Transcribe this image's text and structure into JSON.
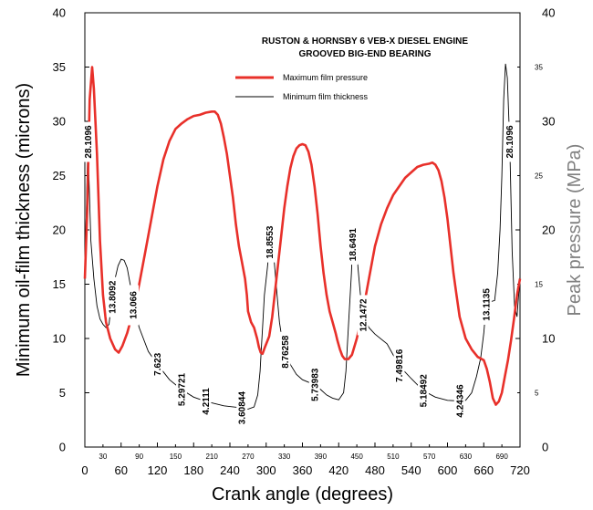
{
  "chart_data": {
    "type": "line",
    "title_line1": "RUSTON & HORNSBY 6 VEB-X DIESEL ENGINE",
    "title_line2": "GROOVED BIG-END BEARING",
    "xlabel": "Crank  angle  (degrees)",
    "ylabel_left": "Minimum oil-film thickness  (microns)",
    "ylabel_right": "Peak  pressure  (MPa)",
    "xlim": [
      0,
      720
    ],
    "ylim_left": [
      0,
      40
    ],
    "ylim_right": [
      0,
      40
    ],
    "x_major_ticks": [
      "0",
      "60",
      "120",
      "180",
      "240",
      "300",
      "360",
      "420",
      "480",
      "540",
      "600",
      "660",
      "720"
    ],
    "x_minor_ticks": [
      "30",
      "90",
      "150",
      "210",
      "270",
      "330",
      "390",
      "450",
      "510",
      "570",
      "630",
      "690"
    ],
    "y_left_ticks": [
      "0",
      "5",
      "10",
      "15",
      "20",
      "25",
      "30",
      "35",
      "40"
    ],
    "y_right_major_ticks": [
      "0",
      "10",
      "20",
      "30",
      "40"
    ],
    "y_right_minor_ticks": [
      "5",
      "15",
      "25",
      "35"
    ],
    "legend": {
      "position": "top-right",
      "entries": [
        "Maximum film pressure",
        "Minimum film thickness"
      ]
    },
    "series": [
      {
        "name": "Maximum film pressure",
        "axis": "right",
        "color": "#e8302a",
        "points": [
          [
            0,
            15.5
          ],
          [
            4,
            22
          ],
          [
            8,
            32
          ],
          [
            12,
            35
          ],
          [
            15,
            33
          ],
          [
            20,
            27
          ],
          [
            25,
            19
          ],
          [
            30,
            14
          ],
          [
            35,
            11.5
          ],
          [
            42,
            10
          ],
          [
            50,
            9
          ],
          [
            56,
            8.7
          ],
          [
            62,
            9.3
          ],
          [
            70,
            10.5
          ],
          [
            80,
            12.5
          ],
          [
            90,
            15
          ],
          [
            100,
            18
          ],
          [
            110,
            21
          ],
          [
            120,
            24
          ],
          [
            130,
            26.5
          ],
          [
            140,
            28.2
          ],
          [
            150,
            29.3
          ],
          [
            160,
            29.8
          ],
          [
            170,
            30.2
          ],
          [
            180,
            30.5
          ],
          [
            190,
            30.6
          ],
          [
            200,
            30.8
          ],
          [
            210,
            30.9
          ],
          [
            215,
            30.9
          ],
          [
            220,
            30.6
          ],
          [
            225,
            29.8
          ],
          [
            230,
            28.5
          ],
          [
            235,
            27
          ],
          [
            240,
            25
          ],
          [
            245,
            23
          ],
          [
            250,
            20.5
          ],
          [
            255,
            18.5
          ],
          [
            260,
            17
          ],
          [
            265,
            15.5
          ],
          [
            268,
            14
          ],
          [
            270,
            12.5
          ],
          [
            275,
            11.5
          ],
          [
            280,
            11
          ],
          [
            285,
            10
          ],
          [
            288,
            9.2
          ],
          [
            291,
            8.7
          ],
          [
            294,
            8.6
          ],
          [
            298,
            9.2
          ],
          [
            305,
            10.2
          ],
          [
            310,
            12
          ],
          [
            315,
            14.5
          ],
          [
            320,
            17
          ],
          [
            325,
            19.5
          ],
          [
            330,
            22
          ],
          [
            335,
            24
          ],
          [
            340,
            25.7
          ],
          [
            345,
            26.8
          ],
          [
            350,
            27.5
          ],
          [
            355,
            27.8
          ],
          [
            360,
            27.9
          ],
          [
            365,
            27.8
          ],
          [
            370,
            27.2
          ],
          [
            375,
            26
          ],
          [
            380,
            24
          ],
          [
            385,
            21.5
          ],
          [
            390,
            18.5
          ],
          [
            395,
            16
          ],
          [
            400,
            14
          ],
          [
            405,
            12.5
          ],
          [
            410,
            11.5
          ],
          [
            415,
            10.5
          ],
          [
            418,
            9.8
          ],
          [
            422,
            9
          ],
          [
            426,
            8.4
          ],
          [
            430,
            8.1
          ],
          [
            436,
            8.1
          ],
          [
            442,
            8.5
          ],
          [
            450,
            10
          ],
          [
            460,
            12.5
          ],
          [
            470,
            15.5
          ],
          [
            480,
            18.5
          ],
          [
            490,
            20.5
          ],
          [
            500,
            22
          ],
          [
            510,
            23.2
          ],
          [
            520,
            24
          ],
          [
            530,
            24.8
          ],
          [
            540,
            25.3
          ],
          [
            550,
            25.8
          ],
          [
            560,
            26
          ],
          [
            570,
            26.1
          ],
          [
            575,
            26.2
          ],
          [
            580,
            26
          ],
          [
            585,
            25.5
          ],
          [
            590,
            24.5
          ],
          [
            595,
            23
          ],
          [
            600,
            21
          ],
          [
            605,
            18.5
          ],
          [
            610,
            16
          ],
          [
            615,
            14
          ],
          [
            620,
            12
          ],
          [
            630,
            10
          ],
          [
            640,
            9
          ],
          [
            650,
            8.3
          ],
          [
            660,
            8
          ],
          [
            665,
            7.2
          ],
          [
            670,
            6
          ],
          [
            675,
            4.5
          ],
          [
            680,
            3.9
          ],
          [
            685,
            4.2
          ],
          [
            690,
            5
          ],
          [
            695,
            6.5
          ],
          [
            700,
            8
          ],
          [
            705,
            9.8
          ],
          [
            710,
            11.8
          ],
          [
            715,
            14
          ],
          [
            720,
            15.5
          ]
        ]
      },
      {
        "name": "Minimum film thickness",
        "axis": "left",
        "color": "#000000",
        "points": [
          [
            0,
            15.7
          ],
          [
            5,
            28.1096
          ],
          [
            10,
            19
          ],
          [
            15,
            15.5
          ],
          [
            20,
            13
          ],
          [
            25,
            11.8
          ],
          [
            30,
            11.3
          ],
          [
            35,
            11
          ],
          [
            40,
            11.3
          ],
          [
            45,
            13.8092
          ],
          [
            50,
            15.5
          ],
          [
            55,
            16.7
          ],
          [
            60,
            17.3
          ],
          [
            65,
            17.2
          ],
          [
            70,
            16.5
          ],
          [
            75,
            15
          ],
          [
            80,
            13.066
          ],
          [
            90,
            11
          ],
          [
            105,
            8.8
          ],
          [
            120,
            7.623
          ],
          [
            140,
            6.2
          ],
          [
            160,
            5.29721
          ],
          [
            180,
            4.6
          ],
          [
            200,
            4.2111
          ],
          [
            230,
            3.8
          ],
          [
            260,
            3.60844
          ],
          [
            270,
            3.5
          ],
          [
            280,
            3.7
          ],
          [
            286,
            4.8
          ],
          [
            290,
            7
          ],
          [
            292,
            9
          ],
          [
            294,
            11
          ],
          [
            297,
            14
          ],
          [
            302,
            16.5
          ],
          [
            306,
            18.8553
          ],
          [
            309,
            19.5
          ],
          [
            312,
            18
          ],
          [
            318,
            14
          ],
          [
            322,
            11.5
          ],
          [
            326,
            10
          ],
          [
            331,
            8.76258
          ],
          [
            340,
            7.6
          ],
          [
            350,
            6.7
          ],
          [
            360,
            6.2
          ],
          [
            380,
            5.73983
          ],
          [
            390,
            5.3
          ],
          [
            400,
            4.8
          ],
          [
            410,
            4.5
          ],
          [
            420,
            4.35
          ],
          [
            428,
            5
          ],
          [
            432,
            7
          ],
          [
            434,
            9
          ],
          [
            437,
            12
          ],
          [
            441,
            16
          ],
          [
            443,
            18.6491
          ],
          [
            446,
            20
          ],
          [
            449,
            19.3
          ],
          [
            452,
            16.5
          ],
          [
            456,
            14
          ],
          [
            460,
            12.1472
          ],
          [
            470,
            11
          ],
          [
            480,
            10.4
          ],
          [
            500,
            9.5
          ],
          [
            520,
            7.49816
          ],
          [
            540,
            6.3
          ],
          [
            560,
            5.18492
          ],
          [
            580,
            4.6
          ],
          [
            600,
            4.3
          ],
          [
            620,
            4.24346
          ],
          [
            630,
            4.3
          ],
          [
            640,
            5
          ],
          [
            648,
            6.5
          ],
          [
            655,
            8.2
          ],
          [
            660,
            10.5
          ],
          [
            664,
            13.1135
          ],
          [
            668,
            13.8
          ],
          [
            672,
            13.4
          ],
          [
            678,
            13.5
          ],
          [
            683,
            16
          ],
          [
            687,
            20
          ],
          [
            690,
            25
          ],
          [
            693,
            32
          ],
          [
            696,
            35.3
          ],
          [
            699,
            34
          ],
          [
            703,
            28.1096
          ],
          [
            707,
            18
          ],
          [
            711,
            13
          ],
          [
            715,
            12
          ],
          [
            720,
            15.7
          ]
        ]
      }
    ],
    "annotations": [
      {
        "text": "28.1096",
        "x": 5,
        "y": 28.1096
      },
      {
        "text": "13.8092",
        "x": 45,
        "y": 13.8092
      },
      {
        "text": "13.066",
        "x": 80,
        "y": 13.066
      },
      {
        "text": "7.623",
        "x": 120,
        "y": 7.623
      },
      {
        "text": "5.29721",
        "x": 160,
        "y": 5.29721
      },
      {
        "text": "4.2111",
        "x": 200,
        "y": 4.2111
      },
      {
        "text": "3.60844",
        "x": 260,
        "y": 3.60844
      },
      {
        "text": "18.8553",
        "x": 306,
        "y": 18.8553
      },
      {
        "text": "8.76258",
        "x": 331,
        "y": 8.76258
      },
      {
        "text": "5.73983",
        "x": 380,
        "y": 5.73983
      },
      {
        "text": "18.6491",
        "x": 443,
        "y": 18.6491
      },
      {
        "text": "12.1472",
        "x": 460,
        "y": 12.1472
      },
      {
        "text": "7.49816",
        "x": 520,
        "y": 7.49816
      },
      {
        "text": "5.18492",
        "x": 560,
        "y": 5.18492
      },
      {
        "text": "4.24346",
        "x": 620,
        "y": 4.24346
      },
      {
        "text": "13.1135",
        "x": 664,
        "y": 13.1135
      },
      {
        "text": "28.1096",
        "x": 703,
        "y": 28.1096
      }
    ]
  }
}
